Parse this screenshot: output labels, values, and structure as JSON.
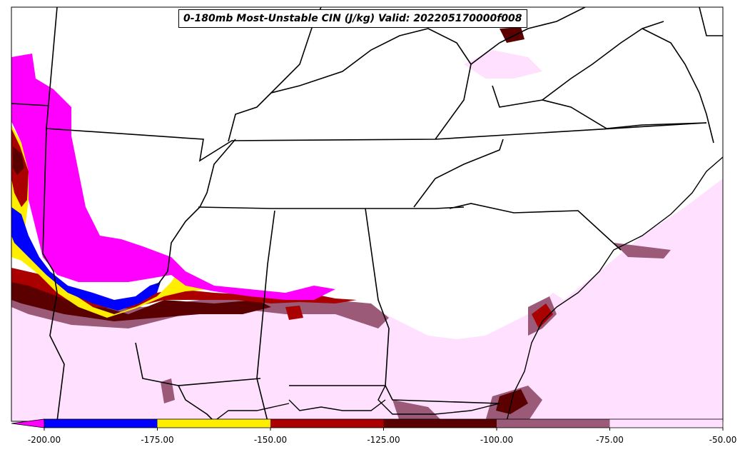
{
  "title": "0-180mb Most-Unstable CIN (J/kg) Valid: 202205170000f008",
  "colorbar": {
    "ticks": [
      "-200.00",
      "-175.00",
      "-150.00",
      "-125.00",
      "-100.00",
      "-75.00",
      "-50.00"
    ],
    "bins": [
      {
        "range": "-200 to -175",
        "color": "#0000ff"
      },
      {
        "range": "-175 to -150",
        "color": "#ffee00"
      },
      {
        "range": "-150 to -125",
        "color": "#aa0000"
      },
      {
        "range": "-125 to -100",
        "color": "#5a0000"
      },
      {
        "range": "-100 to -75",
        "color": "#9a5a78"
      },
      {
        "range": "-75 to -50",
        "color": "#ffe0ff"
      }
    ],
    "under_color": "#ff00ff",
    "extend": "min"
  },
  "map": {
    "region": "Southeastern United States",
    "field": "0-180mb most-unstable CIN",
    "units": "J/kg",
    "features": [
      "state borders",
      "coastlines",
      "rivers",
      "lakes"
    ]
  }
}
